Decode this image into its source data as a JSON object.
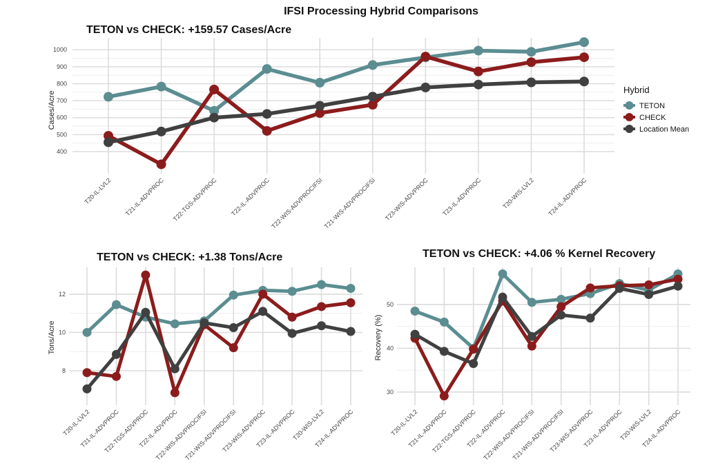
{
  "figure": {
    "title": "IFSI Processing Hybrid Comparisons"
  },
  "legend": {
    "title": "Hybrid",
    "placement": "right",
    "items": [
      {
        "label": "TETON",
        "color": "#5b8d91"
      },
      {
        "label": "CHECK",
        "color": "#8c1c1c"
      },
      {
        "label": "Location Mean",
        "color": "#404040"
      }
    ]
  },
  "chart_data": [
    {
      "type": "line",
      "title": "TETON vs CHECK: +159.57 Cases/Acre",
      "xlabel": "",
      "ylabel": "Cases/Acre",
      "ylim": [
        270,
        1070
      ],
      "yticks": [
        400,
        500,
        600,
        700,
        800,
        900,
        1000
      ],
      "grid": true,
      "categories": [
        "T20-IL-LVL2",
        "T21-IL-ADVPROC",
        "T22-TGS-ADVPROC",
        "T22-IL-ADVPROC",
        "T22-WIS-ADVPROCIFSI",
        "T21-WIS-ADVPROCIFSI",
        "T23-WIS-ADVPROC",
        "T23-IL-ADVPROC",
        "T20-WIS-LVL2",
        "T24-IL-ADVPROC"
      ],
      "series": [
        {
          "name": "TETON",
          "values": [
            723,
            783,
            640,
            887,
            806,
            910,
            955,
            995,
            988,
            1045
          ]
        },
        {
          "name": "CHECK",
          "values": [
            493,
            325,
            766,
            522,
            627,
            676,
            960,
            872,
            927,
            956
          ]
        },
        {
          "name": "Location Mean",
          "values": [
            455,
            518,
            600,
            622,
            670,
            724,
            778,
            795,
            808,
            813
          ]
        }
      ]
    },
    {
      "type": "line",
      "title": "TETON vs CHECK: +1.38 Tons/Acre",
      "xlabel": "",
      "ylabel": "Tons/Acre",
      "ylim": [
        6.2,
        13.4
      ],
      "yticks": [
        8,
        10,
        12
      ],
      "grid": true,
      "categories": [
        "T20-IL-LVL2",
        "T21-IL-ADVPROC",
        "T22-TGS-ADVPROC",
        "T22-IL-ADVPROC",
        "T22-WIS-ADVPROCIFSI",
        "T21-WIS-ADVPROCIFSI",
        "T23-WIS-ADVPROC",
        "T23-IL-ADVPROC",
        "T20-WIS-LVL2",
        "T24-IL-ADVPROC"
      ],
      "series": [
        {
          "name": "TETON",
          "values": [
            10.0,
            11.45,
            10.8,
            10.45,
            10.6,
            11.95,
            12.2,
            12.15,
            12.5,
            12.3
          ]
        },
        {
          "name": "CHECK",
          "values": [
            7.9,
            7.7,
            13.0,
            6.85,
            10.4,
            9.2,
            12.0,
            10.8,
            11.35,
            11.55
          ]
        },
        {
          "name": "Location Mean",
          "values": [
            7.05,
            8.85,
            11.05,
            8.1,
            10.5,
            10.25,
            11.1,
            9.95,
            10.35,
            10.05
          ]
        }
      ]
    },
    {
      "type": "line",
      "title": "TETON vs CHECK: +4.06 % Kernel Recovery",
      "xlabel": "",
      "ylabel": "Recovery (%)",
      "ylim": [
        27,
        58.5
      ],
      "yticks": [
        30,
        40,
        50
      ],
      "grid": true,
      "categories": [
        "T20-IL-LVL2",
        "T21-IL-ADVPROC",
        "T22-TGS-ADVPROC",
        "T22-IL-ADVPROC",
        "T22-WIS-ADVPROCIFSI",
        "T21-WIS-ADVPROCIFSI",
        "T23-WIS-ADVPROC",
        "T23-IL-ADVPROC",
        "T20-WIS-LVL2",
        "T24-IL-ADVPROC"
      ],
      "series": [
        {
          "name": "TETON",
          "values": [
            48.5,
            46.0,
            40.0,
            57.0,
            50.5,
            51.2,
            52.5,
            54.8,
            53.3,
            57.0
          ]
        },
        {
          "name": "CHECK",
          "values": [
            42.3,
            29.1,
            39.8,
            50.8,
            40.5,
            49.5,
            53.8,
            54.3,
            54.5,
            55.8
          ]
        },
        {
          "name": "Location Mean",
          "values": [
            43.2,
            39.3,
            36.5,
            51.7,
            42.7,
            47.6,
            46.9,
            53.7,
            52.3,
            54.2
          ]
        }
      ]
    }
  ]
}
